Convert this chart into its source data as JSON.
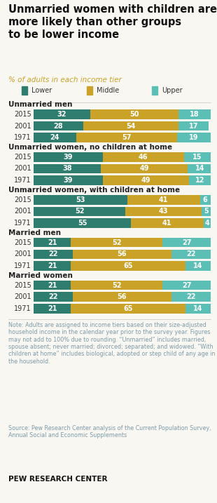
{
  "title_line1": "Unmarried women with children are",
  "title_line2": "more likely than other groups",
  "title_line3": "to be lower income",
  "subtitle": "% of adults in each income tier",
  "colors": {
    "lower": "#2e7d6e",
    "middle": "#c9a227",
    "upper": "#5bbfb5"
  },
  "legend_items": [
    "Lower",
    "Middle",
    "Upper"
  ],
  "groups": [
    {
      "label": "Unmarried men",
      "bars": [
        {
          "year": "2015",
          "lower": 32,
          "middle": 50,
          "upper": 18
        },
        {
          "year": "2001",
          "lower": 28,
          "middle": 54,
          "upper": 17
        },
        {
          "year": "1971",
          "lower": 24,
          "middle": 57,
          "upper": 19
        }
      ]
    },
    {
      "label": "Unmarried women, no children at home",
      "bars": [
        {
          "year": "2015",
          "lower": 39,
          "middle": 46,
          "upper": 15
        },
        {
          "year": "2001",
          "lower": 38,
          "middle": 49,
          "upper": 14
        },
        {
          "year": "1971",
          "lower": 39,
          "middle": 49,
          "upper": 12
        }
      ]
    },
    {
      "label": "Unmarried women, with children at home",
      "bars": [
        {
          "year": "2015",
          "lower": 53,
          "middle": 41,
          "upper": 6
        },
        {
          "year": "2001",
          "lower": 52,
          "middle": 43,
          "upper": 5
        },
        {
          "year": "1971",
          "lower": 55,
          "middle": 41,
          "upper": 4
        }
      ]
    },
    {
      "label": "Married men",
      "bars": [
        {
          "year": "2015",
          "lower": 21,
          "middle": 52,
          "upper": 27
        },
        {
          "year": "2001",
          "lower": 22,
          "middle": 56,
          "upper": 22
        },
        {
          "year": "1971",
          "lower": 21,
          "middle": 65,
          "upper": 14
        }
      ]
    },
    {
      "label": "Married women",
      "bars": [
        {
          "year": "2015",
          "lower": 21,
          "middle": 52,
          "upper": 27
        },
        {
          "year": "2001",
          "lower": 22,
          "middle": 56,
          "upper": 22
        },
        {
          "year": "1971",
          "lower": 21,
          "middle": 65,
          "upper": 14
        }
      ]
    }
  ],
  "note": "Note: Adults are assigned to income tiers based on their size-adjusted household income in the calendar year prior to the survey year. Figures may not add to 100% due to rounding. “Unmarried” includes married, spouse absent; never married; divorced; separated; and widowed. “With children at home” includes biological, adopted or step child of any age in the household.",
  "source": "Source: Pew Research Center analysis of the Current Population Survey, Annual Social and Economic Supplements",
  "footer": "PEW RESEARCH CENTER",
  "bg_color": "#f9f7f2",
  "title_color": "#111111",
  "subtitle_color": "#c9a227",
  "label_color": "#222222",
  "year_color": "#333333",
  "note_color": "#7a9aaa",
  "source_color": "#7a9aaa",
  "footer_color": "#111111"
}
